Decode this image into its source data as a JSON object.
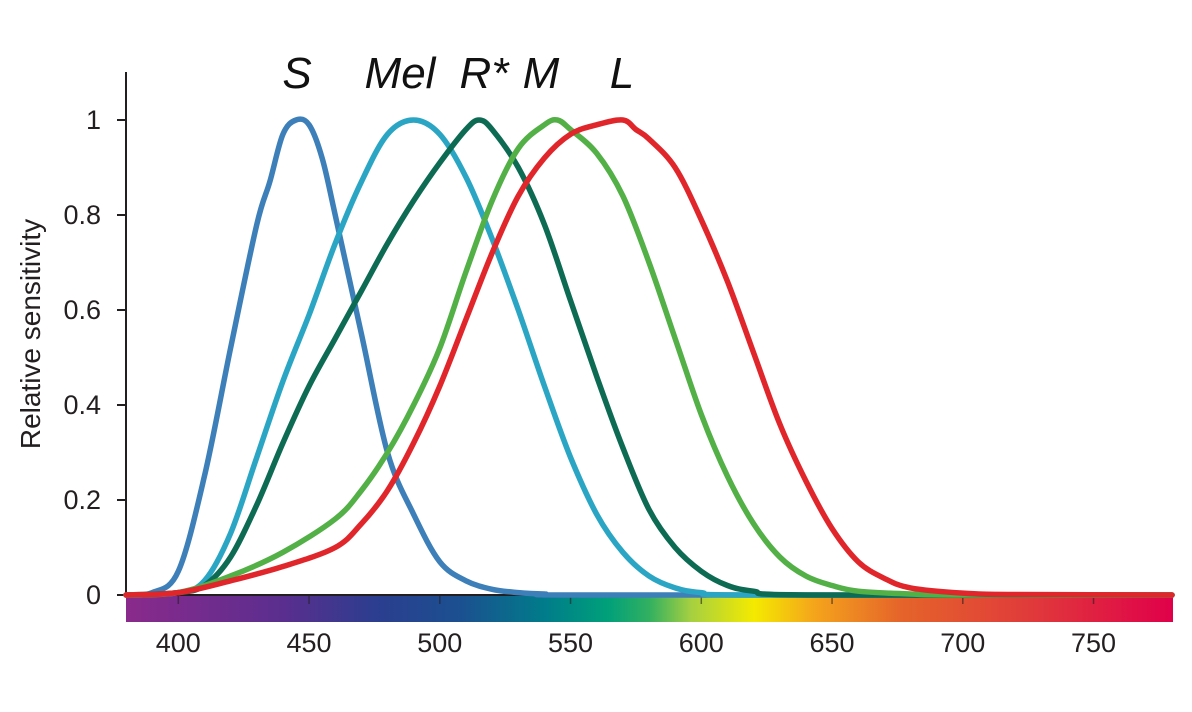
{
  "chart_data": {
    "type": "line",
    "title": "",
    "xlabel": "",
    "ylabel": "Relative sensitivity",
    "xlim": [
      380,
      780
    ],
    "ylim": [
      0,
      1.1
    ],
    "xticks": [
      400,
      450,
      500,
      550,
      600,
      650,
      700,
      750
    ],
    "xtick_labels": [
      "400",
      "450",
      "500",
      "550",
      "600",
      "650",
      "700",
      "750"
    ],
    "yticks": [
      0,
      0.2,
      0.4,
      0.6,
      0.8,
      1
    ],
    "ytick_labels": [
      "0",
      "0.2",
      "0.4",
      "0.6",
      "0.8",
      "1"
    ],
    "grid": false,
    "legend": "labels above curve peaks",
    "spectrum_band": true,
    "series": [
      {
        "name": "S",
        "color": "#3d7fb8",
        "x": [
          380,
          390,
          400,
          410,
          420,
          430,
          435,
          440,
          445,
          450,
          455,
          460,
          470,
          480,
          490,
          500,
          510,
          520,
          530,
          540,
          560,
          780
        ],
        "y": [
          0.0,
          0.005,
          0.05,
          0.25,
          0.52,
          0.78,
          0.87,
          0.97,
          1.0,
          0.99,
          0.92,
          0.8,
          0.55,
          0.3,
          0.17,
          0.07,
          0.03,
          0.012,
          0.005,
          0.002,
          0.0,
          0.0
        ]
      },
      {
        "name": "Mel",
        "color": "#2aa6c4",
        "x": [
          380,
          400,
          410,
          420,
          430,
          440,
          450,
          460,
          470,
          480,
          490,
          500,
          510,
          520,
          530,
          540,
          550,
          560,
          570,
          580,
          590,
          600,
          620,
          780
        ],
        "y": [
          0.0,
          0.005,
          0.03,
          0.13,
          0.29,
          0.45,
          0.59,
          0.74,
          0.87,
          0.97,
          1.0,
          0.97,
          0.88,
          0.75,
          0.6,
          0.44,
          0.29,
          0.17,
          0.09,
          0.04,
          0.015,
          0.005,
          0.0,
          0.0
        ]
      },
      {
        "name": "R*",
        "color": "#0d6b54",
        "x": [
          380,
          400,
          410,
          420,
          430,
          440,
          450,
          460,
          470,
          480,
          490,
          500,
          510,
          515,
          520,
          530,
          540,
          550,
          560,
          570,
          580,
          590,
          600,
          610,
          620,
          640,
          780
        ],
        "y": [
          0.0,
          0.005,
          0.02,
          0.08,
          0.19,
          0.32,
          0.44,
          0.54,
          0.64,
          0.74,
          0.83,
          0.91,
          0.98,
          1.0,
          0.98,
          0.9,
          0.78,
          0.62,
          0.46,
          0.31,
          0.18,
          0.1,
          0.05,
          0.02,
          0.008,
          0.0,
          0.0
        ]
      },
      {
        "name": "M",
        "color": "#52b046",
        "x": [
          380,
          400,
          420,
          440,
          460,
          470,
          480,
          490,
          500,
          510,
          520,
          530,
          540,
          545,
          550,
          560,
          570,
          580,
          590,
          600,
          610,
          620,
          630,
          640,
          650,
          660,
          680,
          700,
          780
        ],
        "y": [
          0.0,
          0.005,
          0.04,
          0.09,
          0.16,
          0.22,
          0.3,
          0.4,
          0.52,
          0.68,
          0.83,
          0.94,
          0.99,
          1.0,
          0.98,
          0.93,
          0.84,
          0.7,
          0.54,
          0.38,
          0.25,
          0.15,
          0.08,
          0.04,
          0.02,
          0.008,
          0.002,
          0.0,
          0.0
        ]
      },
      {
        "name": "L",
        "color": "#e0262b",
        "x": [
          380,
          400,
          420,
          440,
          460,
          470,
          480,
          490,
          500,
          510,
          520,
          530,
          540,
          550,
          560,
          570,
          575,
          580,
          590,
          600,
          610,
          620,
          630,
          640,
          650,
          660,
          670,
          680,
          700,
          720,
          780
        ],
        "y": [
          0.0,
          0.005,
          0.03,
          0.06,
          0.1,
          0.15,
          0.22,
          0.32,
          0.44,
          0.58,
          0.72,
          0.84,
          0.92,
          0.97,
          0.99,
          1.0,
          0.98,
          0.96,
          0.9,
          0.79,
          0.66,
          0.51,
          0.36,
          0.24,
          0.14,
          0.07,
          0.035,
          0.015,
          0.004,
          0.001,
          0.0
        ]
      }
    ]
  }
}
